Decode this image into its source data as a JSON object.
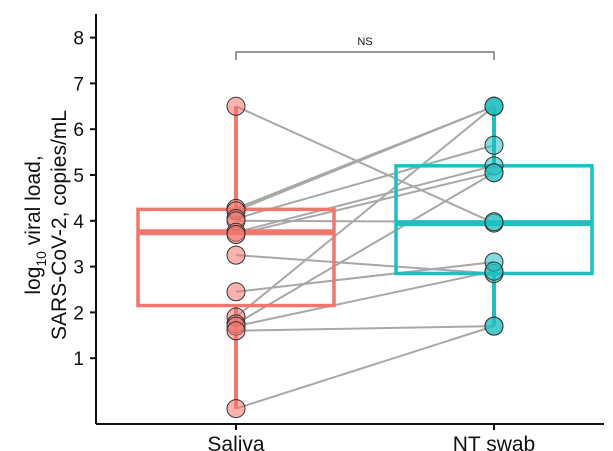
{
  "chart_data": {
    "type": "box",
    "ylabel_prefix": "log",
    "ylabel_sub": "10",
    "ylabel_line1_rest": " viral load,",
    "ylabel_line2": "SARS-CoV-2, copies/mL",
    "categories": [
      "Saliva",
      "NT swab"
    ],
    "y_ticks": [
      1,
      2,
      3,
      4,
      5,
      6,
      7,
      8
    ],
    "ylim": [
      -0.15,
      8.4
    ],
    "significance": "NS",
    "colors": {
      "Saliva": "#f0766e",
      "NT swab": "#1fbfc0",
      "pair_line": "#a8a8a8"
    },
    "boxes": [
      {
        "category": "Saliva",
        "whisker_low": -0.1,
        "q1": 2.15,
        "median": 3.75,
        "q3": 4.25,
        "whisker_high": 6.5
      },
      {
        "category": "NT swab",
        "whisker_low": 1.7,
        "q1": 2.85,
        "median": 3.95,
        "q3": 5.2,
        "whisker_high": 6.5
      }
    ],
    "pairs": [
      {
        "saliva": 6.5,
        "nt_swab": 3.95
      },
      {
        "saliva": 4.27,
        "nt_swab": 6.5
      },
      {
        "saliva": 4.22,
        "nt_swab": 6.5
      },
      {
        "saliva": 4.05,
        "nt_swab": 5.65
      },
      {
        "saliva": 4.0,
        "nt_swab": 3.98
      },
      {
        "saliva": 3.75,
        "nt_swab": 5.2
      },
      {
        "saliva": 3.7,
        "nt_swab": 5.05
      },
      {
        "saliva": 3.25,
        "nt_swab": 2.85
      },
      {
        "saliva": 2.45,
        "nt_swab": 3.1
      },
      {
        "saliva": 1.9,
        "nt_swab": 6.5
      },
      {
        "saliva": 1.75,
        "nt_swab": 5.05
      },
      {
        "saliva": 1.7,
        "nt_swab": 2.9
      },
      {
        "saliva": 1.6,
        "nt_swab": 1.7
      },
      {
        "saliva": -0.1,
        "nt_swab": 1.7
      }
    ]
  }
}
